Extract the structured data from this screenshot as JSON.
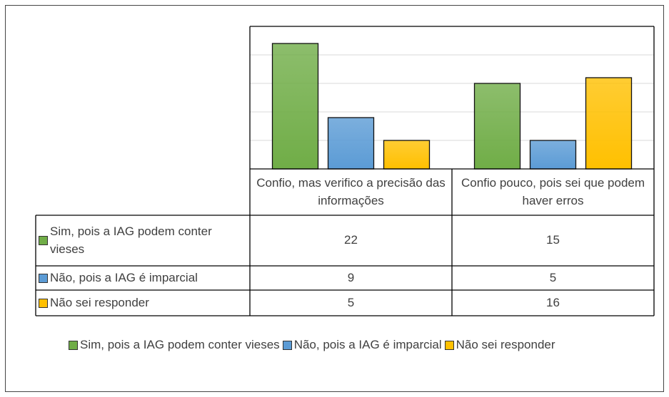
{
  "chart_data": {
    "type": "bar",
    "categories": [
      "Confio, mas verifico a precisão das informações",
      "Confio pouco, pois sei que podem haver erros"
    ],
    "series": [
      {
        "name": "Sim, pois a IAG podem conter vieses",
        "color": "#70ad47",
        "values": [
          22,
          15
        ]
      },
      {
        "name": "Não, pois a IAG é imparcial",
        "color": "#5b9bd5",
        "values": [
          9,
          5
        ]
      },
      {
        "name": "Não sei responder",
        "color": "#ffc000",
        "values": [
          5,
          16
        ]
      }
    ],
    "ylim": [
      0,
      25
    ],
    "yticks": [
      0,
      5,
      10,
      15,
      20,
      25
    ],
    "grid": true,
    "legend": "bottom",
    "data_table": true
  }
}
